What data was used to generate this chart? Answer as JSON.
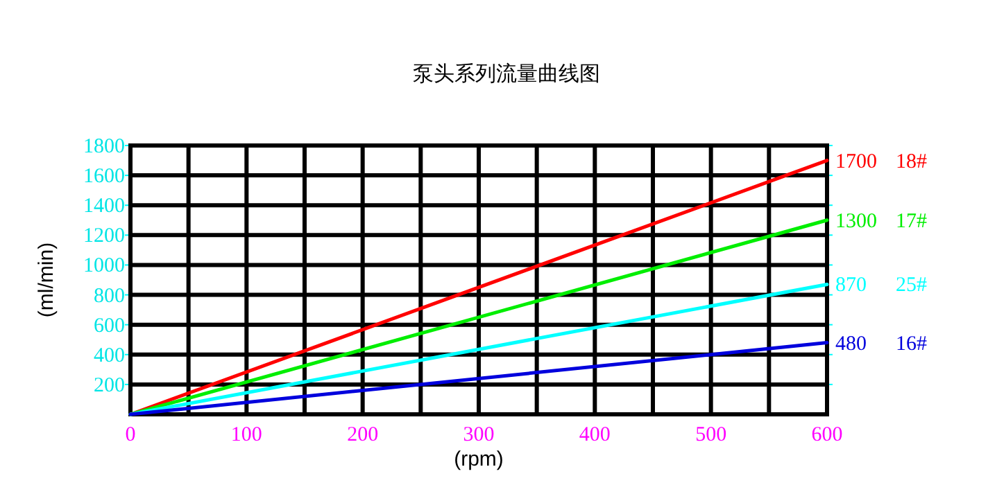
{
  "chart_data": {
    "type": "line",
    "title": "泵头系列流量曲线图",
    "xlabel": "(rpm)",
    "ylabel": "(ml/min)",
    "x": [
      0,
      600
    ],
    "xlim": [
      0,
      600
    ],
    "ylim": [
      0,
      1800
    ],
    "xticks": [
      0,
      {
        "value": 50,
        "label": null
      },
      100,
      {
        "value": 150,
        "label": null
      },
      200,
      {
        "value": 250,
        "label": null
      },
      300,
      {
        "value": 350,
        "label": null
      },
      400,
      {
        "value": 450,
        "label": null
      },
      500,
      {
        "value": 550,
        "label": null
      },
      600
    ],
    "yticks": [
      200,
      400,
      600,
      800,
      1000,
      1200,
      1400,
      1600,
      1800
    ],
    "grid": true,
    "series": [
      {
        "name": "18#",
        "color": "#ff0000",
        "values": [
          0,
          1700
        ],
        "value_labels": [
          null,
          "1700"
        ]
      },
      {
        "name": "17#",
        "color": "#00ee00",
        "values": [
          0,
          1300
        ],
        "value_labels": [
          null,
          "1300"
        ]
      },
      {
        "name": "25#",
        "color": "#00ffff",
        "values": [
          0,
          870
        ],
        "value_labels": [
          null,
          "870"
        ]
      },
      {
        "name": "16#",
        "color": "#0000dd",
        "values": [
          0,
          480
        ],
        "value_labels": [
          null,
          "480"
        ]
      }
    ]
  }
}
